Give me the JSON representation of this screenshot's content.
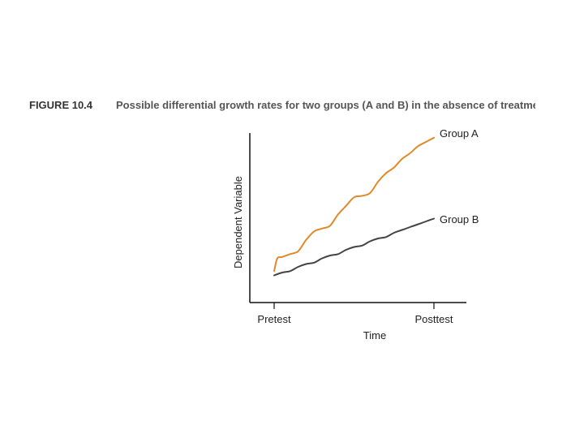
{
  "caption": {
    "label": "FIGURE 10.4",
    "text": "Possible differential growth rates for two groups (A and B) in the absence of treatment"
  },
  "chart_data": {
    "type": "line",
    "title": "Possible differential growth rates for two groups (A and B) in the absence of treatment",
    "xlabel": "Time",
    "ylabel": "Dependent Variable",
    "categories": [
      "Pretest",
      "Posttest"
    ],
    "xlim": [
      0,
      1
    ],
    "ylim": [
      0,
      100
    ],
    "grid": false,
    "legend": "inline-right",
    "series": [
      {
        "name": "Group A",
        "color": "#e0892a",
        "x": [
          0.0,
          0.02,
          0.05,
          0.1,
          0.15,
          0.2,
          0.25,
          0.3,
          0.35,
          0.4,
          0.45,
          0.5,
          0.55,
          0.6,
          0.65,
          0.7,
          0.75,
          0.8,
          0.85,
          0.9,
          0.95,
          1.0
        ],
        "y": [
          5,
          14,
          15,
          17,
          19,
          27,
          33,
          35,
          37,
          45,
          51,
          57,
          58,
          60,
          68,
          74,
          78,
          84,
          88,
          93,
          96,
          99
        ]
      },
      {
        "name": "Group B",
        "color": "#444444",
        "x": [
          0.0,
          0.05,
          0.1,
          0.15,
          0.2,
          0.25,
          0.3,
          0.35,
          0.4,
          0.45,
          0.5,
          0.55,
          0.6,
          0.65,
          0.7,
          0.75,
          0.8,
          0.85,
          0.9,
          0.95,
          1.0
        ],
        "y": [
          2,
          4,
          5,
          8,
          10,
          11,
          14,
          16,
          17,
          20,
          22,
          23,
          26,
          28,
          29,
          32,
          34,
          36,
          38,
          40,
          42
        ]
      }
    ]
  }
}
